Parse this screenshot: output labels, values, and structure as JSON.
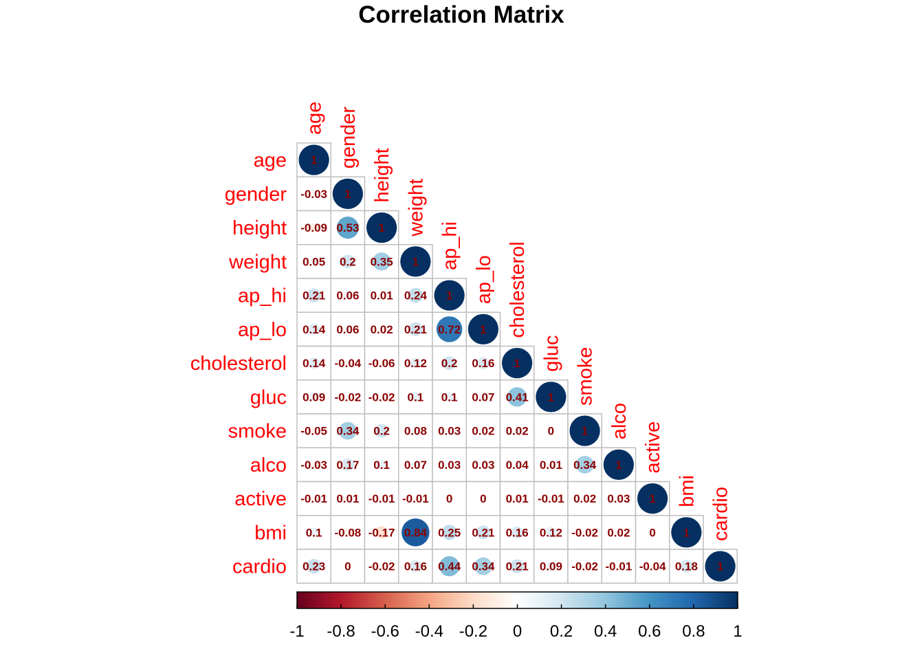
{
  "chart_data": {
    "type": "heatmap",
    "title": "Correlation Matrix",
    "variables": [
      "age",
      "gender",
      "height",
      "weight",
      "ap_hi",
      "ap_lo",
      "cholesterol",
      "gluc",
      "smoke",
      "alco",
      "active",
      "bmi",
      "cardio"
    ],
    "lower_triangle": [
      [
        "1"
      ],
      [
        "-0.03",
        "1"
      ],
      [
        "-0.09",
        "0.53",
        "1"
      ],
      [
        "0.05",
        "0.2",
        "0.35",
        "1"
      ],
      [
        "0.21",
        "0.06",
        "0.01",
        "0.24",
        "1"
      ],
      [
        "0.14",
        "0.06",
        "0.02",
        "0.21",
        "0.72",
        "1"
      ],
      [
        "0.14",
        "-0.04",
        "-0.06",
        "0.12",
        "0.2",
        "0.16",
        "1"
      ],
      [
        "0.09",
        "-0.02",
        "-0.02",
        "0.1",
        "0.1",
        "0.07",
        "0.41",
        "1"
      ],
      [
        "-0.05",
        "0.34",
        "0.2",
        "0.08",
        "0.03",
        "0.02",
        "0.02",
        "0",
        "1"
      ],
      [
        "-0.03",
        "0.17",
        "0.1",
        "0.07",
        "0.03",
        "0.03",
        "0.04",
        "0.01",
        "0.34",
        "1"
      ],
      [
        "-0.01",
        "0.01",
        "-0.01",
        "-0.01",
        "0",
        "0",
        "0.01",
        "-0.01",
        "0.02",
        "0.03",
        "1"
      ],
      [
        "0.1",
        "-0.08",
        "-0.17",
        "0.84",
        "0.25",
        "0.21",
        "0.16",
        "0.12",
        "-0.02",
        "0.02",
        "0",
        "1"
      ],
      [
        "0.23",
        "0",
        "-0.02",
        "0.16",
        "0.44",
        "0.34",
        "0.21",
        "0.09",
        "-0.02",
        "-0.01",
        "-0.04",
        "0.18",
        "1"
      ]
    ],
    "colorbar": {
      "ticks": [
        "-1",
        "-0.8",
        "-0.6",
        "-0.4",
        "-0.2",
        "0",
        "0.2",
        "0.4",
        "0.6",
        "0.8",
        "1"
      ],
      "range": [
        -1,
        1
      ],
      "colors": [
        "#67001f",
        "#b2182b",
        "#d6604d",
        "#f4a582",
        "#fddbc7",
        "#ffffff",
        "#d1e5f0",
        "#92c5de",
        "#4393c3",
        "#2166ac",
        "#053061"
      ]
    },
    "label_color": "#ff0000",
    "value_color": "#8b0000",
    "grid_color": "#bebebe"
  }
}
